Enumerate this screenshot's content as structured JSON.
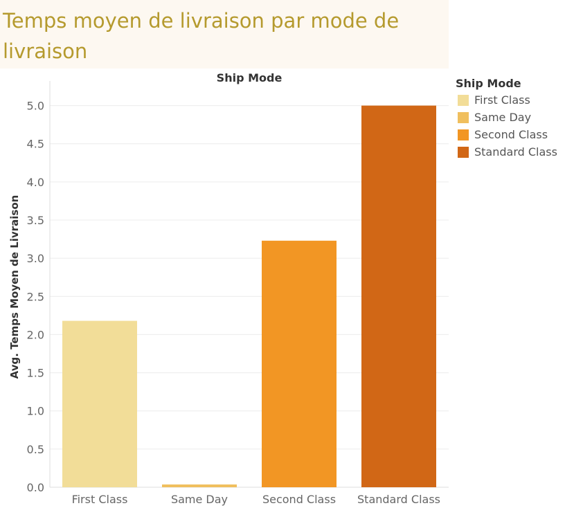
{
  "title": "Temps moyen de livraison par mode de livraison",
  "chart_data": {
    "type": "bar",
    "column_header": "Ship Mode",
    "categories": [
      "First Class",
      "Same Day",
      "Second Class",
      "Standard Class"
    ],
    "values": [
      2.18,
      0.02,
      3.23,
      5.0
    ],
    "colors": [
      "#f2dd98",
      "#f0bf5e",
      "#f29624",
      "#d16716"
    ],
    "ylabel": "Avg. Temps Moyen de Livraison",
    "xlabel": "",
    "ylim": [
      0,
      5.25
    ],
    "y_ticks": [
      "0.0",
      "0.5",
      "1.0",
      "1.5",
      "2.0",
      "2.5",
      "3.0",
      "3.5",
      "4.0",
      "4.5",
      "5.0"
    ],
    "grid": true,
    "legend_placement": "right"
  },
  "legend": {
    "title": "Ship Mode",
    "items": [
      {
        "label": "First Class",
        "color": "#f2dd98"
      },
      {
        "label": "Same Day",
        "color": "#f0bf5e"
      },
      {
        "label": "Second Class",
        "color": "#f29624"
      },
      {
        "label": "Standard Class",
        "color": "#d16716"
      }
    ]
  }
}
